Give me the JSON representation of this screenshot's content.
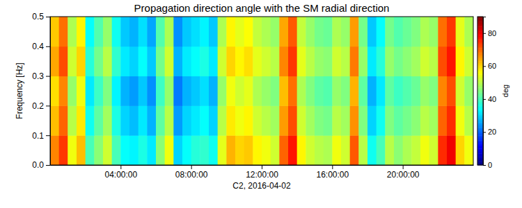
{
  "chart_data": {
    "type": "heatmap",
    "title": "Propagation direction angle with the SM radial direction",
    "xlabel": "C2, 2016-04-02",
    "ylabel": "Frequency [Hz]",
    "xlim": [
      0,
      24
    ],
    "ylim": [
      0,
      0.5
    ],
    "xticks": [
      {
        "value": 4,
        "label": "04:00:00"
      },
      {
        "value": 8,
        "label": "08:00:00"
      },
      {
        "value": 12,
        "label": "12:00:00"
      },
      {
        "value": 16,
        "label": "16:00:00"
      },
      {
        "value": 20,
        "label": "20:00:00"
      }
    ],
    "yticks": [
      {
        "value": 0,
        "label": "0.0"
      },
      0.1,
      0.2,
      0.3,
      0.4,
      0.5
    ],
    "x": [
      0,
      0.5,
      1,
      1.5,
      2,
      2.5,
      3,
      3.5,
      4,
      4.5,
      5,
      5.5,
      6,
      6.5,
      7,
      7.5,
      8,
      8.5,
      9,
      9.5,
      10,
      10.5,
      11,
      11.5,
      12,
      12.5,
      13,
      13.5,
      14,
      14.5,
      15,
      15.5,
      16,
      16.5,
      17,
      17.5,
      18,
      18.5,
      19,
      19.5,
      20,
      20.5,
      21,
      21.5,
      22,
      22.5,
      23,
      23.5
    ],
    "y": [
      0,
      0.1,
      0.2,
      0.3,
      0.4
    ],
    "values": [
      [
        67,
        74,
        55,
        62,
        40,
        46,
        52,
        40,
        34,
        33,
        36,
        32,
        46,
        55,
        30,
        34,
        37,
        38,
        35,
        54,
        63,
        60,
        61,
        57,
        55,
        52,
        70,
        77,
        57,
        52,
        50,
        49,
        55,
        52,
        71,
        50,
        35,
        40,
        50,
        46,
        49,
        51,
        55,
        52,
        75,
        80,
        60,
        55
      ],
      [
        62,
        70,
        50,
        58,
        35,
        42,
        48,
        36,
        30,
        28,
        32,
        27,
        42,
        50,
        25,
        30,
        32,
        34,
        30,
        50,
        58,
        55,
        57,
        52,
        50,
        48,
        65,
        72,
        52,
        48,
        45,
        44,
        50,
        48,
        66,
        45,
        30,
        35,
        45,
        42,
        44,
        46,
        50,
        48,
        70,
        75,
        55,
        50
      ],
      [
        59,
        67,
        47,
        55,
        32,
        39,
        45,
        33,
        27,
        25,
        29,
        24,
        39,
        47,
        22,
        27,
        29,
        31,
        27,
        47,
        55,
        52,
        54,
        49,
        47,
        45,
        62,
        69,
        49,
        45,
        42,
        41,
        47,
        45,
        63,
        42,
        27,
        32,
        42,
        39,
        41,
        43,
        47,
        45,
        67,
        72,
        52,
        47
      ],
      [
        64,
        72,
        52,
        60,
        37,
        44,
        50,
        38,
        32,
        30,
        34,
        29,
        44,
        52,
        27,
        32,
        34,
        36,
        32,
        52,
        60,
        57,
        59,
        54,
        52,
        50,
        67,
        74,
        54,
        50,
        47,
        46,
        52,
        50,
        68,
        47,
        32,
        37,
        47,
        44,
        46,
        48,
        52,
        50,
        72,
        77,
        57,
        52
      ],
      [
        61,
        69,
        49,
        57,
        34,
        41,
        47,
        35,
        29,
        27,
        31,
        26,
        41,
        49,
        24,
        29,
        31,
        33,
        29,
        49,
        57,
        54,
        56,
        51,
        49,
        47,
        64,
        71,
        51,
        47,
        44,
        43,
        49,
        47,
        65,
        44,
        29,
        34,
        44,
        41,
        43,
        45,
        49,
        47,
        69,
        74,
        54,
        49
      ]
    ],
    "colorbar": {
      "range": [
        0,
        90
      ],
      "ticks": [
        0,
        20,
        40,
        60,
        80
      ],
      "label": "deg"
    }
  }
}
